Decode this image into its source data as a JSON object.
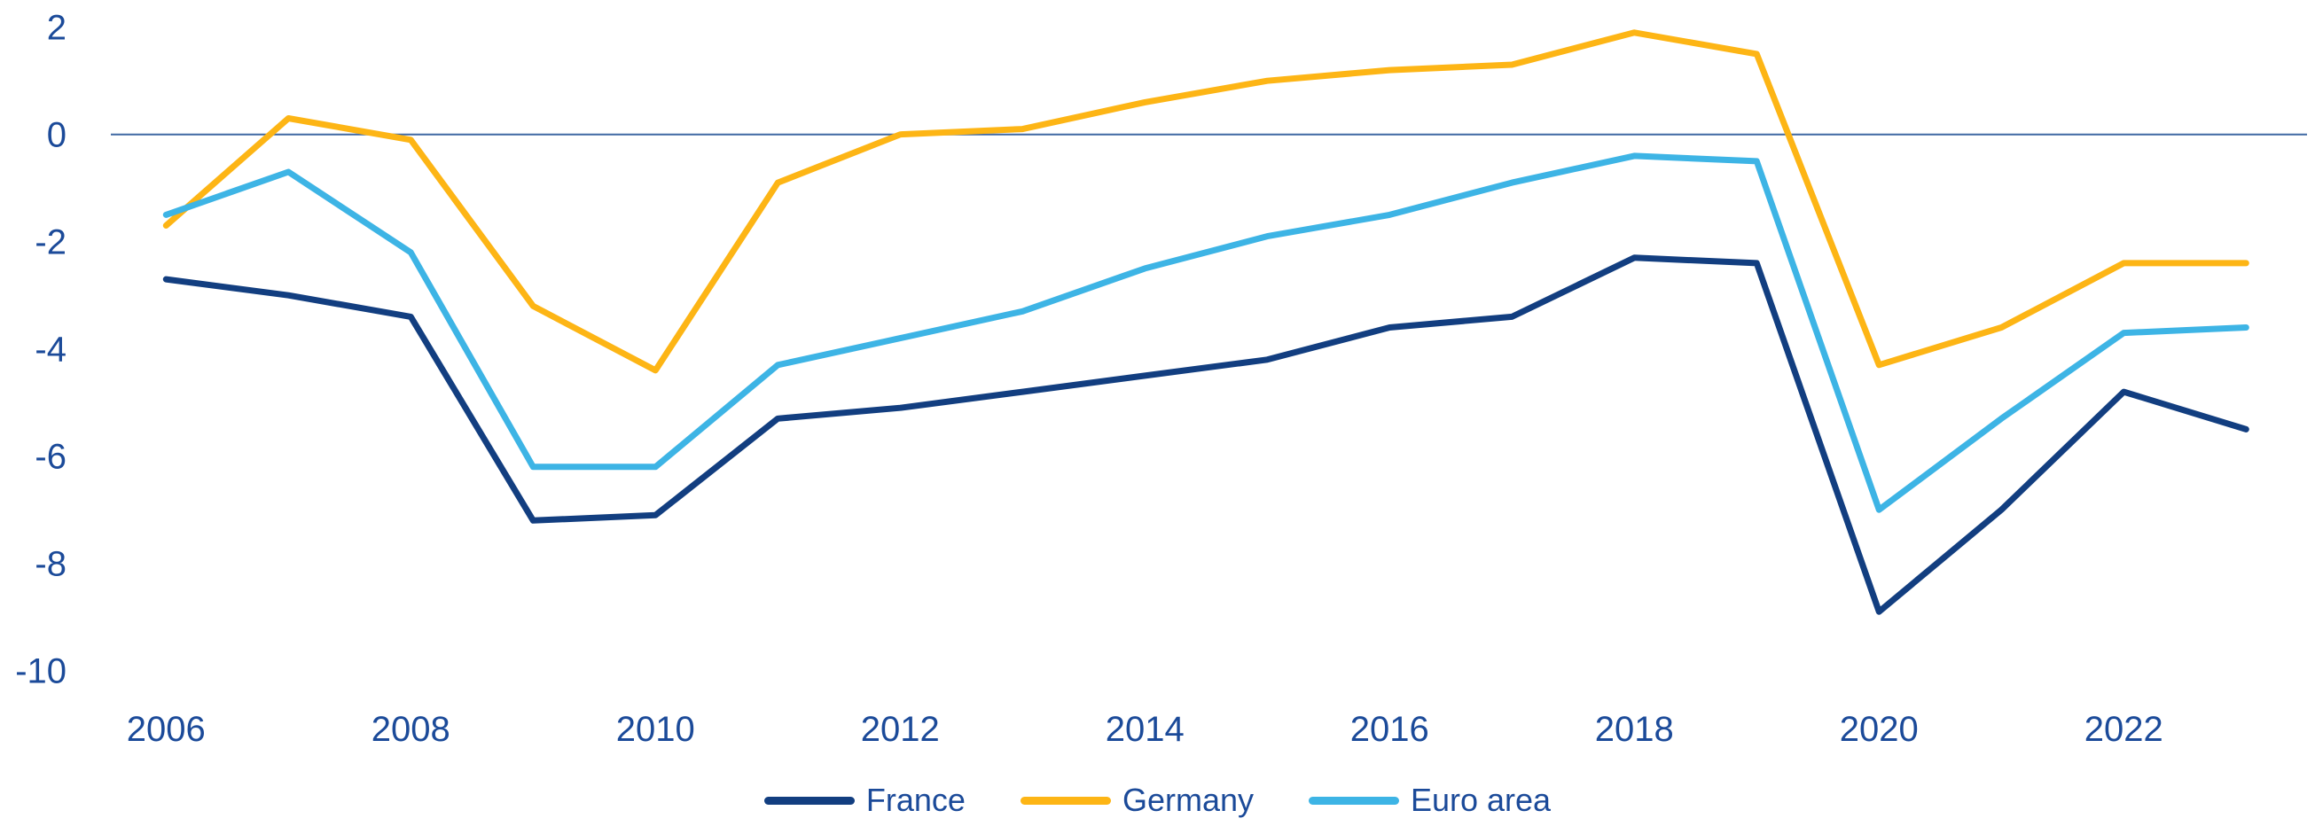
{
  "chart_data": {
    "type": "line",
    "title": "",
    "xlabel": "",
    "ylabel": "",
    "x": [
      2006,
      2007,
      2008,
      2009,
      2010,
      2011,
      2012,
      2013,
      2014,
      2015,
      2016,
      2017,
      2018,
      2019,
      2020,
      2021,
      2022,
      2023
    ],
    "xticks": [
      2006,
      2008,
      2010,
      2012,
      2014,
      2016,
      2018,
      2020,
      2022
    ],
    "yticks": [
      2,
      0,
      -2,
      -4,
      -6,
      -8,
      -10
    ],
    "ylim": [
      -10,
      2
    ],
    "grid": "horizontal zero line only",
    "legend_position": "bottom-center",
    "series": [
      {
        "name": "France",
        "color": "#123e80",
        "values": [
          -2.7,
          -3.0,
          -3.4,
          -7.2,
          -7.1,
          -5.3,
          -5.1,
          -4.8,
          -4.5,
          -4.2,
          -3.6,
          -3.4,
          -2.3,
          -2.4,
          -8.9,
          -7.0,
          -4.8,
          -5.5
        ]
      },
      {
        "name": "Germany",
        "color": "#fdb515",
        "values": [
          -1.7,
          0.3,
          -0.1,
          -3.2,
          -4.4,
          -0.9,
          0.0,
          0.1,
          0.6,
          1.0,
          1.2,
          1.3,
          1.9,
          1.5,
          -4.3,
          -3.6,
          -2.4,
          -2.4
        ]
      },
      {
        "name": "Euro area",
        "color": "#3db4e5",
        "values": [
          -1.5,
          -0.7,
          -2.2,
          -6.2,
          -6.2,
          -4.3,
          -3.8,
          -3.3,
          -2.5,
          -1.9,
          -1.5,
          -0.9,
          -0.4,
          -0.5,
          -7.0,
          -5.3,
          -3.7,
          -3.6
        ]
      }
    ],
    "zero_line_color": "#3f69a3",
    "tick_label_color": "#1b4a99",
    "line_width": 7
  },
  "legend": {
    "items": [
      "France",
      "Germany",
      "Euro area"
    ]
  }
}
